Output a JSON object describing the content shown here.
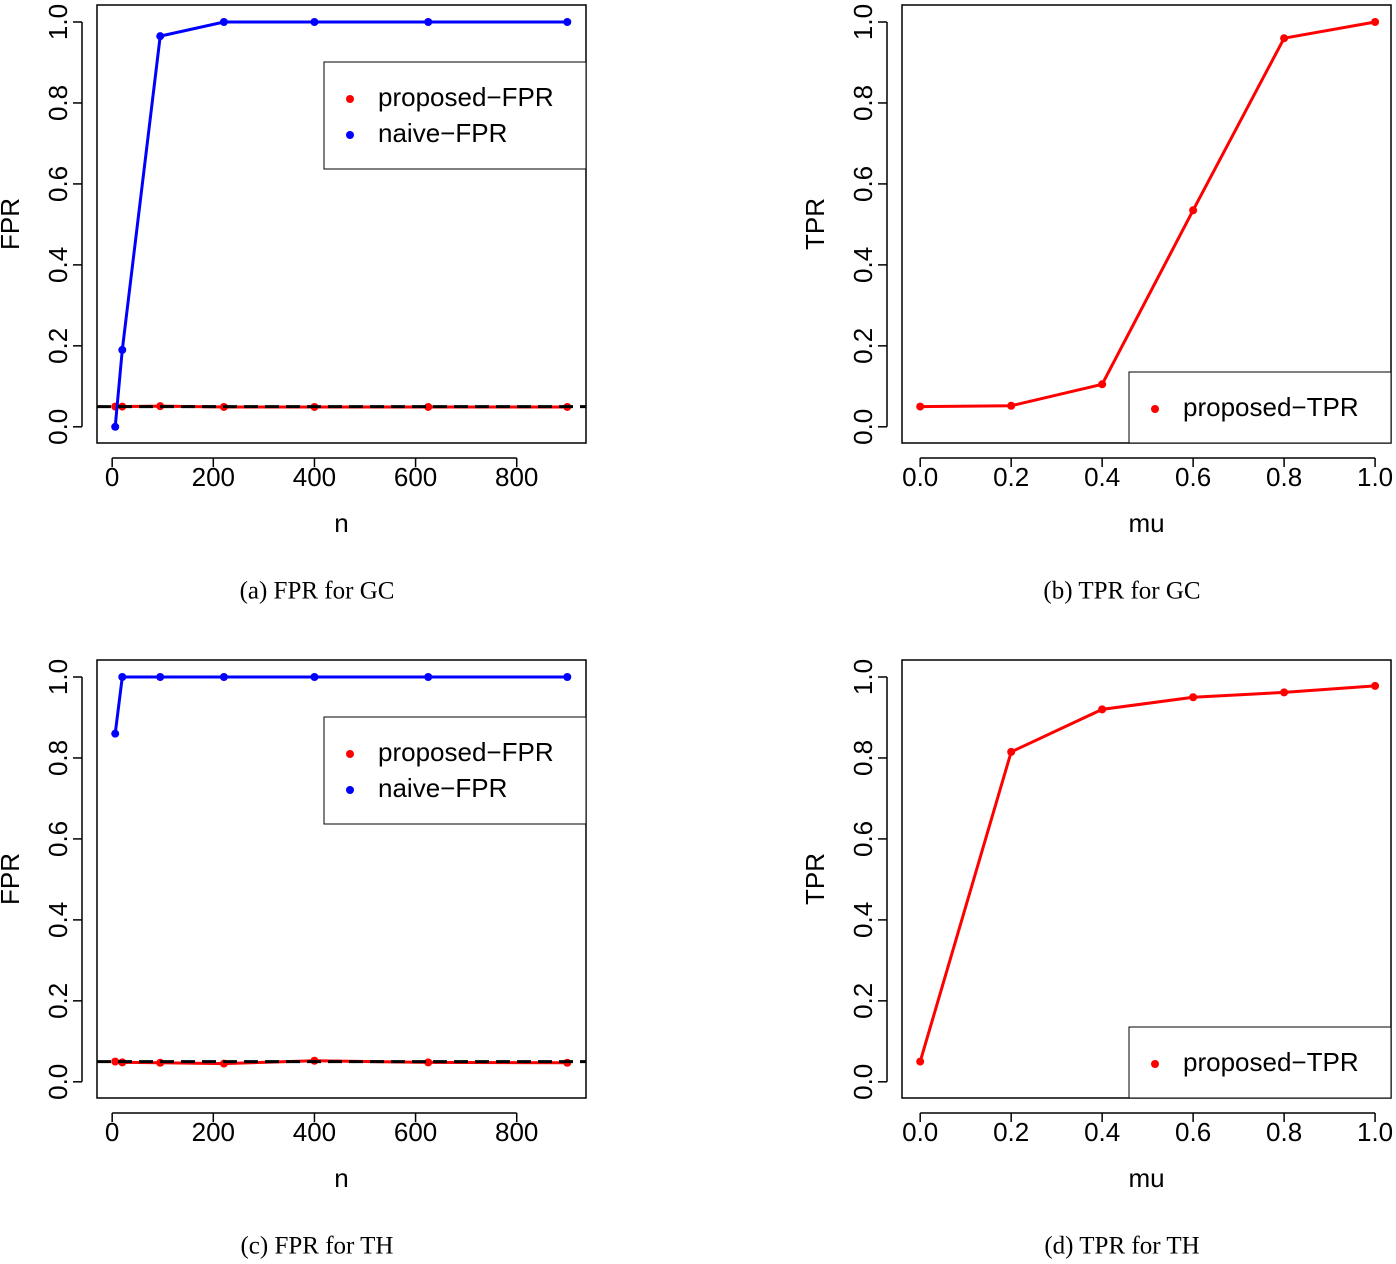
{
  "chart_data": [
    {
      "type": "line",
      "caption": "(a) FPR for GC",
      "xlabel": "n",
      "ylabel": "FPR",
      "x": [
        6,
        20,
        95,
        221,
        400,
        625,
        900
      ],
      "series": [
        {
          "name": "proposed−FPR",
          "color": "#ff0000",
          "values": [
            0.05,
            0.05,
            0.051,
            0.049,
            0.049,
            0.049,
            0.049
          ]
        },
        {
          "name": "naive−FPR",
          "color": "#0000ff",
          "values": [
            0.0,
            0.19,
            0.965,
            1.0,
            1.0,
            1.0,
            1.0
          ]
        }
      ],
      "hline": 0.05,
      "hline_color": "#000000",
      "xlim": [
        -30,
        937
      ],
      "ylim": [
        -0.04,
        1.042
      ],
      "xticks": [
        0,
        200,
        400,
        600,
        800
      ],
      "yticks": [
        {
          "value": 0,
          "label": "0.0"
        },
        {
          "value": 0.2,
          "label": "0.2"
        },
        {
          "value": 0.4,
          "label": "0.4"
        },
        {
          "value": 0.6,
          "label": "0.6"
        },
        {
          "value": 0.8,
          "label": "0.8"
        },
        {
          "value": 1,
          "label": "1.0"
        }
      ],
      "legend": "upper right"
    },
    {
      "type": "line",
      "caption": "(b) TPR for GC",
      "xlabel": "mu",
      "ylabel": "TPR",
      "x": [
        0,
        0.2,
        0.4,
        0.6,
        0.8,
        1.0
      ],
      "series": [
        {
          "name": "proposed−TPR",
          "color": "#ff0000",
          "values": [
            0.05,
            0.052,
            0.105,
            0.535,
            0.96,
            1.0
          ]
        }
      ],
      "xlim": [
        -0.04,
        1.035
      ],
      "ylim": [
        -0.04,
        1.042
      ],
      "xticks": [
        {
          "value": 0,
          "label": "0.0"
        },
        {
          "value": 0.2,
          "label": "0.2"
        },
        {
          "value": 0.4,
          "label": "0.4"
        },
        {
          "value": 0.6,
          "label": "0.6"
        },
        {
          "value": 0.8,
          "label": "0.8"
        },
        {
          "value": 1,
          "label": "1.0"
        }
      ],
      "yticks": [
        {
          "value": 0,
          "label": "0.0"
        },
        {
          "value": 0.2,
          "label": "0.2"
        },
        {
          "value": 0.4,
          "label": "0.4"
        },
        {
          "value": 0.6,
          "label": "0.6"
        },
        {
          "value": 0.8,
          "label": "0.8"
        },
        {
          "value": 1,
          "label": "1.0"
        }
      ],
      "legend": "lower right"
    },
    {
      "type": "line",
      "caption": "(c) FPR for TH",
      "xlabel": "n",
      "ylabel": "FPR",
      "x": [
        6,
        20,
        95,
        221,
        400,
        625,
        900
      ],
      "series": [
        {
          "name": "proposed−FPR",
          "color": "#ff0000",
          "values": [
            0.05,
            0.048,
            0.047,
            0.045,
            0.052,
            0.048,
            0.047
          ]
        },
        {
          "name": "naive−FPR",
          "color": "#0000ff",
          "values": [
            0.86,
            1.0,
            1.0,
            1.0,
            1.0,
            1.0,
            1.0
          ]
        }
      ],
      "hline": 0.05,
      "hline_color": "#000000",
      "xlim": [
        -30,
        937
      ],
      "ylim": [
        -0.04,
        1.042
      ],
      "xticks": [
        0,
        200,
        400,
        600,
        800
      ],
      "yticks": [
        {
          "value": 0,
          "label": "0.0"
        },
        {
          "value": 0.2,
          "label": "0.2"
        },
        {
          "value": 0.4,
          "label": "0.4"
        },
        {
          "value": 0.6,
          "label": "0.6"
        },
        {
          "value": 0.8,
          "label": "0.8"
        },
        {
          "value": 1,
          "label": "1.0"
        }
      ],
      "legend": "upper right"
    },
    {
      "type": "line",
      "caption": "(d) TPR for TH",
      "xlabel": "mu",
      "ylabel": "TPR",
      "x": [
        0,
        0.2,
        0.4,
        0.6,
        0.8,
        1.0
      ],
      "series": [
        {
          "name": "proposed−TPR",
          "color": "#ff0000",
          "values": [
            0.05,
            0.815,
            0.92,
            0.95,
            0.962,
            0.978
          ]
        }
      ],
      "xlim": [
        -0.04,
        1.035
      ],
      "ylim": [
        -0.04,
        1.042
      ],
      "xticks": [
        {
          "value": 0,
          "label": "0.0"
        },
        {
          "value": 0.2,
          "label": "0.2"
        },
        {
          "value": 0.4,
          "label": "0.4"
        },
        {
          "value": 0.6,
          "label": "0.6"
        },
        {
          "value": 0.8,
          "label": "0.8"
        },
        {
          "value": 1,
          "label": "1.0"
        }
      ],
      "yticks": [
        {
          "value": 0,
          "label": "0.0"
        },
        {
          "value": 0.2,
          "label": "0.2"
        },
        {
          "value": 0.4,
          "label": "0.4"
        },
        {
          "value": 0.6,
          "label": "0.6"
        },
        {
          "value": 0.8,
          "label": "0.8"
        },
        {
          "value": 1,
          "label": "1.0"
        }
      ],
      "legend": "lower right"
    }
  ]
}
